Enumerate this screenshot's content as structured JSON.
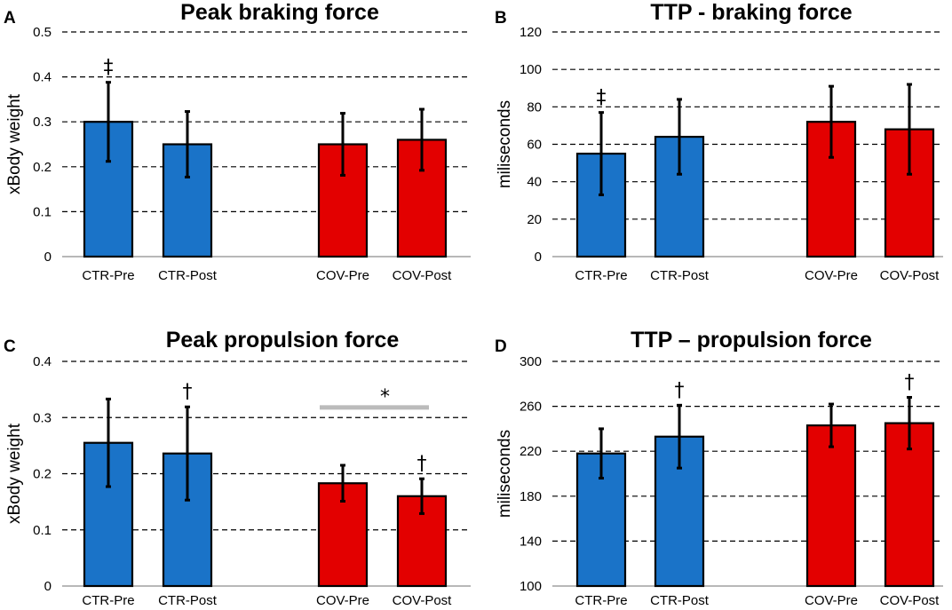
{
  "colors": {
    "ctr": "#1a73c8",
    "cov": "#e30000",
    "grid": "#000000",
    "baseline": "#a0a0a0",
    "sigbar": "#bbbbbb"
  },
  "chart_data": [
    {
      "panel": "A",
      "type": "bar",
      "title": "Peak braking force",
      "ylabel": "xBody weight",
      "xlabel": "",
      "categories": [
        "CTR-Pre",
        "CTR-Post",
        "COV-Pre",
        "COV-Post"
      ],
      "values": [
        0.3,
        0.25,
        0.25,
        0.26
      ],
      "errors": [
        0.088,
        0.073,
        0.069,
        0.068
      ],
      "groups": [
        "CTR",
        "CTR",
        "COV",
        "COV"
      ],
      "ylim": [
        0,
        0.5
      ],
      "yticks": [
        "0",
        "0.1",
        "0.2",
        "0.3",
        "0.4",
        "0.5"
      ],
      "grid": true,
      "annotations": [
        {
          "category": "CTR-Pre",
          "symbol": "‡"
        }
      ]
    },
    {
      "panel": "B",
      "type": "bar",
      "title": "TTP - braking force",
      "ylabel": "miliseconds",
      "xlabel": "",
      "categories": [
        "CTR-Pre",
        "CTR-Post",
        "COV-Pre",
        "COV-Post"
      ],
      "values": [
        55,
        64,
        72,
        68
      ],
      "errors": [
        22,
        20,
        19,
        24
      ],
      "groups": [
        "CTR",
        "CTR",
        "COV",
        "COV"
      ],
      "ylim": [
        0,
        120
      ],
      "yticks": [
        "0",
        "20",
        "40",
        "60",
        "80",
        "100",
        "120"
      ],
      "grid": true,
      "annotations": [
        {
          "category": "CTR-Pre",
          "symbol": "‡"
        }
      ]
    },
    {
      "panel": "C",
      "type": "bar",
      "title": "Peak propulsion force",
      "ylabel": "xBody weight",
      "xlabel": "",
      "categories": [
        "CTR-Pre",
        "CTR-Post",
        "COV-Pre",
        "COV-Post"
      ],
      "values": [
        0.255,
        0.236,
        0.183,
        0.16
      ],
      "errors": [
        0.078,
        0.083,
        0.032,
        0.031
      ],
      "groups": [
        "CTR",
        "CTR",
        "COV",
        "COV"
      ],
      "ylim": [
        0,
        0.4
      ],
      "yticks": [
        "0",
        "0.1",
        "0.2",
        "0.3",
        "0.4"
      ],
      "grid": true,
      "annotations": [
        {
          "category": "CTR-Post",
          "symbol": "†"
        },
        {
          "category": "COV-Post",
          "symbol": "†"
        }
      ],
      "significance": {
        "from": "COV-Pre",
        "to": "COV-Post",
        "symbol": "*",
        "y": 0.318
      }
    },
    {
      "panel": "D",
      "type": "bar",
      "title": "TTP – propulsion force",
      "ylabel": "miliseconds",
      "xlabel": "",
      "categories": [
        "CTR-Pre",
        "CTR-Post",
        "COV-Pre",
        "COV-Post"
      ],
      "values": [
        218,
        233,
        243,
        245
      ],
      "errors": [
        22,
        28,
        19,
        23
      ],
      "groups": [
        "CTR",
        "CTR",
        "COV",
        "COV"
      ],
      "ylim": [
        100,
        300
      ],
      "yticks": [
        "100",
        "140",
        "180",
        "220",
        "260",
        "300"
      ],
      "grid": true,
      "annotations": [
        {
          "category": "CTR-Post",
          "symbol": "†"
        },
        {
          "category": "COV-Post",
          "symbol": "†"
        }
      ]
    }
  ]
}
